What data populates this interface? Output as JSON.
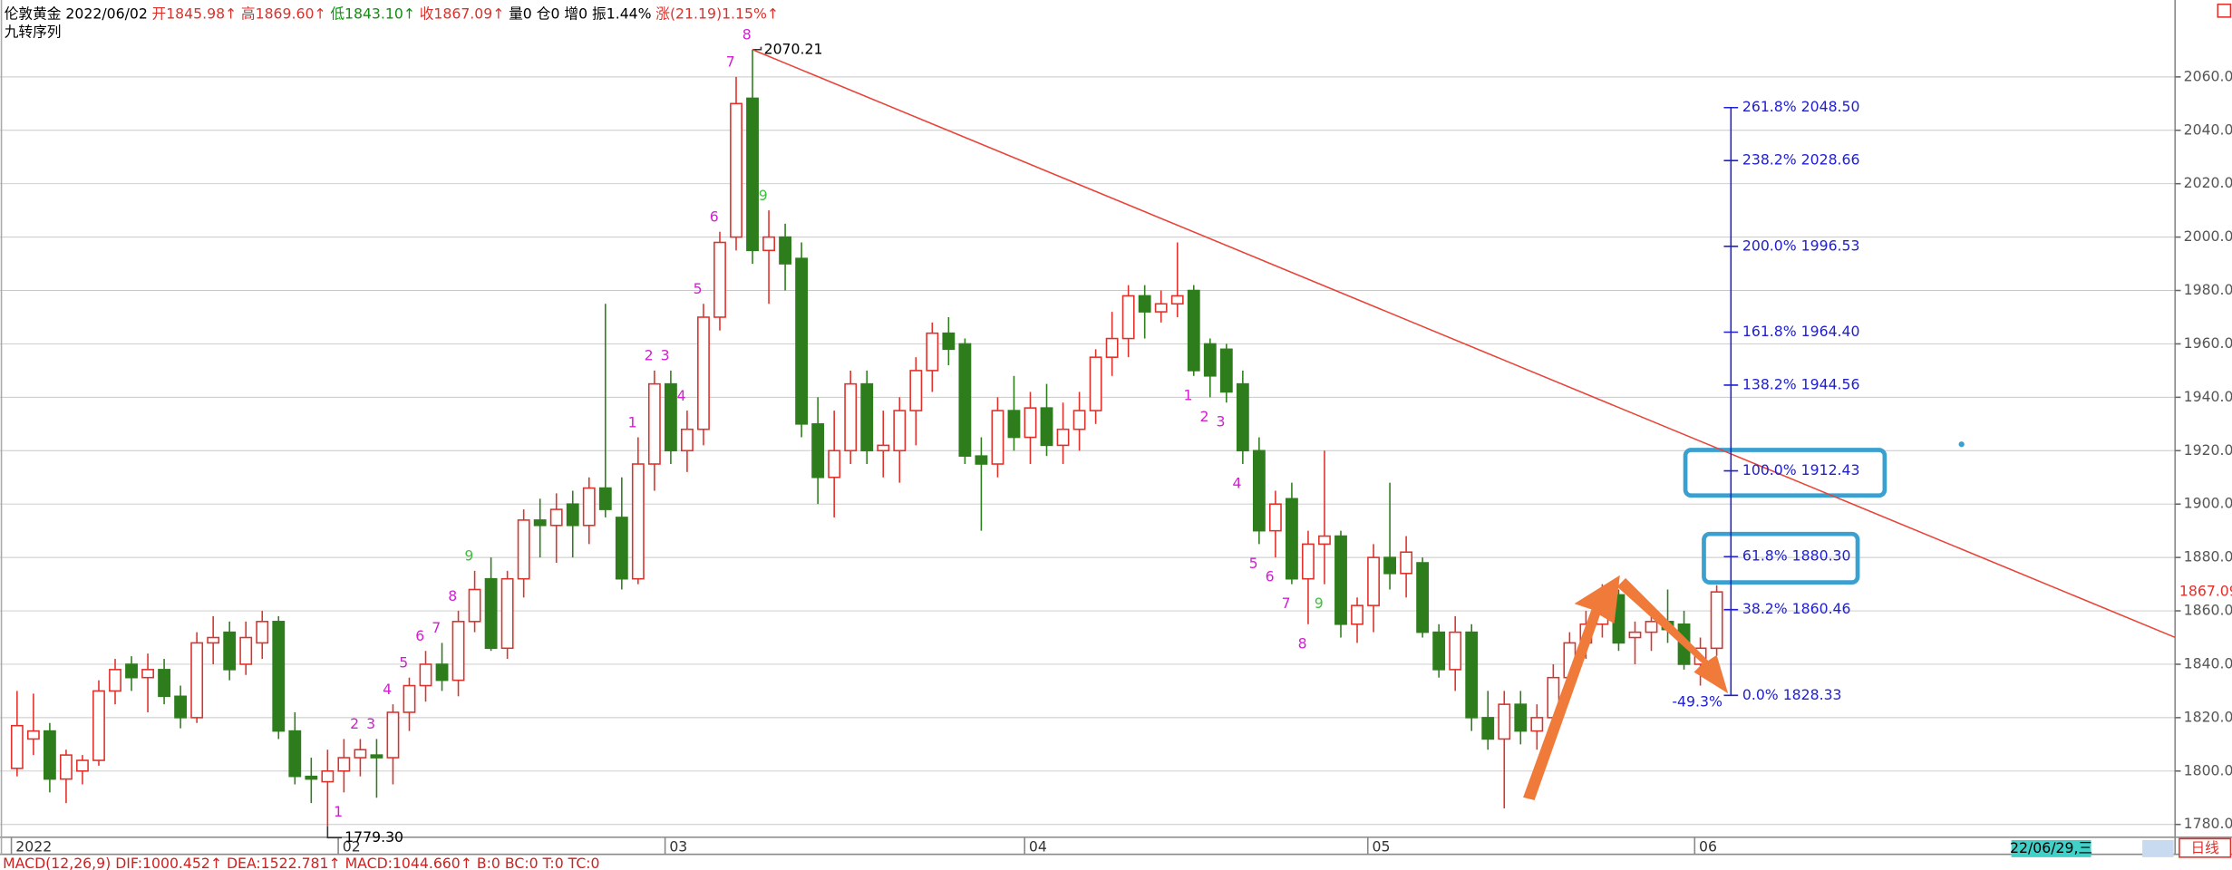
{
  "chart_data": {
    "type": "candlestick",
    "header": [
      {
        "text": "伦敦黄金 2022/06/02",
        "color": "#000000"
      },
      {
        "text": "开1845.98↑",
        "color": "#e0302a"
      },
      {
        "text": "高1869.60↑",
        "color": "#e0302a"
      },
      {
        "text": "低1843.10↑",
        "color": "#109010"
      },
      {
        "text": "收1867.09↑",
        "color": "#e0302a"
      },
      {
        "text": "量0  仓0  增0  振1.44%",
        "color": "#000000"
      },
      {
        "text": "涨(21.19)1.15%↑",
        "color": "#e0302a"
      }
    ],
    "subtitle": "九转序列",
    "up_color": "#e0302a",
    "down_color": "#2e7d1c",
    "categories": [
      "2022",
      null,
      null,
      null,
      null,
      null,
      null,
      null,
      null,
      null,
      null,
      null,
      null,
      null,
      null,
      null,
      null,
      null,
      null,
      null,
      "02",
      null,
      null,
      null,
      null,
      null,
      null,
      null,
      null,
      null,
      null,
      null,
      null,
      null,
      null,
      null,
      null,
      null,
      null,
      null,
      "03",
      null,
      null,
      null,
      null,
      null,
      null,
      null,
      null,
      null,
      null,
      null,
      null,
      null,
      null,
      null,
      null,
      null,
      null,
      null,
      null,
      null,
      "04",
      null,
      null,
      null,
      null,
      null,
      null,
      null,
      null,
      null,
      null,
      null,
      null,
      null,
      null,
      null,
      null,
      null,
      null,
      null,
      null,
      "05",
      null,
      null,
      null,
      null,
      null,
      null,
      null,
      null,
      null,
      null,
      null,
      null,
      null,
      null,
      null,
      null,
      null,
      null,
      null,
      "06"
    ],
    "ohlc": [
      [
        1801,
        1830,
        1798,
        1817
      ],
      [
        1812,
        1829,
        1806,
        1815
      ],
      [
        1815,
        1818,
        1792,
        1797
      ],
      [
        1797,
        1808,
        1788,
        1806
      ],
      [
        1800,
        1806,
        1795,
        1804
      ],
      [
        1804,
        1834,
        1802,
        1830
      ],
      [
        1830,
        1842,
        1825,
        1838
      ],
      [
        1840,
        1843,
        1830,
        1835
      ],
      [
        1835,
        1844,
        1822,
        1838
      ],
      [
        1838,
        1842,
        1825,
        1828
      ],
      [
        1828,
        1832,
        1816,
        1820
      ],
      [
        1820,
        1852,
        1818,
        1848
      ],
      [
        1848,
        1858,
        1840,
        1850
      ],
      [
        1852,
        1856,
        1834,
        1838
      ],
      [
        1840,
        1856,
        1836,
        1850
      ],
      [
        1848,
        1860,
        1842,
        1856
      ],
      [
        1856,
        1858,
        1812,
        1815
      ],
      [
        1815,
        1822,
        1795,
        1798
      ],
      [
        1798,
        1805,
        1788,
        1797
      ],
      [
        1796,
        1808,
        1779.3,
        1800
      ],
      [
        1800,
        1812,
        1792,
        1805
      ],
      [
        1805,
        1812,
        1798,
        1808
      ],
      [
        1806,
        1812,
        1790,
        1805
      ],
      [
        1805,
        1825,
        1795,
        1822
      ],
      [
        1822,
        1835,
        1815,
        1832
      ],
      [
        1832,
        1845,
        1826,
        1840
      ],
      [
        1840,
        1848,
        1830,
        1834
      ],
      [
        1834,
        1860,
        1828,
        1856
      ],
      [
        1856,
        1875,
        1852,
        1868
      ],
      [
        1872,
        1880,
        1845,
        1846
      ],
      [
        1846,
        1875,
        1842,
        1872
      ],
      [
        1872,
        1898,
        1865,
        1894
      ],
      [
        1894,
        1902,
        1880,
        1892
      ],
      [
        1892,
        1904,
        1878,
        1898
      ],
      [
        1900,
        1905,
        1880,
        1892
      ],
      [
        1892,
        1910,
        1885,
        1906
      ],
      [
        1906,
        1975,
        1895,
        1898
      ],
      [
        1895,
        1910,
        1868,
        1872
      ],
      [
        1872,
        1925,
        1870,
        1915
      ],
      [
        1915,
        1950,
        1905,
        1945
      ],
      [
        1945,
        1950,
        1915,
        1920
      ],
      [
        1920,
        1935,
        1912,
        1928
      ],
      [
        1928,
        1975,
        1922,
        1970
      ],
      [
        1970,
        2002,
        1965,
        1998
      ],
      [
        2000,
        2060,
        1995,
        2050
      ],
      [
        2052,
        2070.21,
        1990,
        1995
      ],
      [
        1995,
        2010,
        1975,
        2000
      ],
      [
        2000,
        2005,
        1980,
        1990
      ],
      [
        1992,
        1998,
        1925,
        1930
      ],
      [
        1930,
        1940,
        1900,
        1910
      ],
      [
        1910,
        1935,
        1895,
        1920
      ],
      [
        1920,
        1950,
        1915,
        1945
      ],
      [
        1945,
        1950,
        1915,
        1920
      ],
      [
        1920,
        1935,
        1910,
        1922
      ],
      [
        1920,
        1940,
        1908,
        1935
      ],
      [
        1935,
        1955,
        1922,
        1950
      ],
      [
        1950,
        1968,
        1942,
        1964
      ],
      [
        1964,
        1970,
        1952,
        1958
      ],
      [
        1960,
        1962,
        1915,
        1918
      ],
      [
        1918,
        1925,
        1890,
        1915
      ],
      [
        1915,
        1940,
        1910,
        1935
      ],
      [
        1935,
        1948,
        1920,
        1925
      ],
      [
        1925,
        1942,
        1915,
        1936
      ],
      [
        1936,
        1945,
        1918,
        1922
      ],
      [
        1922,
        1938,
        1915,
        1928
      ],
      [
        1928,
        1942,
        1920,
        1935
      ],
      [
        1935,
        1958,
        1930,
        1955
      ],
      [
        1955,
        1972,
        1948,
        1962
      ],
      [
        1962,
        1982,
        1955,
        1978
      ],
      [
        1978,
        1982,
        1962,
        1972
      ],
      [
        1972,
        1980,
        1968,
        1975
      ],
      [
        1975,
        1998,
        1970,
        1978
      ],
      [
        1980,
        1982,
        1948,
        1950
      ],
      [
        1960,
        1962,
        1940,
        1948
      ],
      [
        1958,
        1960,
        1938,
        1942
      ],
      [
        1945,
        1950,
        1915,
        1920
      ],
      [
        1920,
        1925,
        1885,
        1890
      ],
      [
        1890,
        1905,
        1880,
        1900
      ],
      [
        1902,
        1908,
        1870,
        1872
      ],
      [
        1872,
        1890,
        1855,
        1885
      ],
      [
        1885,
        1920,
        1870,
        1888
      ],
      [
        1888,
        1890,
        1850,
        1855
      ],
      [
        1855,
        1865,
        1848,
        1862
      ],
      [
        1862,
        1885,
        1852,
        1880
      ],
      [
        1880,
        1908,
        1868,
        1874
      ],
      [
        1874,
        1888,
        1865,
        1882
      ],
      [
        1878,
        1880,
        1850,
        1852
      ],
      [
        1852,
        1855,
        1835,
        1838
      ],
      [
        1838,
        1858,
        1830,
        1852
      ],
      [
        1852,
        1855,
        1815,
        1820
      ],
      [
        1820,
        1830,
        1808,
        1812
      ],
      [
        1812,
        1830,
        1786,
        1825
      ],
      [
        1825,
        1830,
        1810,
        1815
      ],
      [
        1815,
        1825,
        1808,
        1820
      ],
      [
        1820,
        1840,
        1815,
        1835
      ],
      [
        1835,
        1852,
        1830,
        1848
      ],
      [
        1848,
        1860,
        1842,
        1855
      ],
      [
        1855,
        1870,
        1850,
        1865
      ],
      [
        1866,
        1868,
        1845,
        1848
      ],
      [
        1850,
        1856,
        1840,
        1852
      ],
      [
        1852,
        1862,
        1845,
        1856
      ],
      [
        1856,
        1868,
        1848,
        1853
      ],
      [
        1855,
        1860,
        1838,
        1840
      ],
      [
        1840,
        1850,
        1832,
        1846
      ],
      [
        1845.98,
        1869.6,
        1843.1,
        1867.09
      ]
    ],
    "td_counts": [
      null,
      null,
      null,
      null,
      null,
      null,
      null,
      null,
      null,
      null,
      null,
      null,
      null,
      null,
      null,
      null,
      null,
      null,
      null,
      null,
      1,
      2,
      3,
      4,
      5,
      6,
      7,
      8,
      9,
      null,
      null,
      null,
      null,
      null,
      null,
      null,
      null,
      null,
      1,
      2,
      3,
      4,
      5,
      6,
      7,
      8,
      9,
      null,
      null,
      null,
      null,
      null,
      null,
      null,
      null,
      null,
      null,
      null,
      null,
      null,
      null,
      null,
      null,
      null,
      null,
      null,
      null,
      null,
      null,
      null,
      null,
      null,
      1,
      2,
      3,
      4,
      5,
      6,
      7,
      8,
      9,
      null,
      null,
      null,
      null,
      null,
      null,
      null,
      null,
      null,
      null,
      null,
      null,
      null,
      null,
      null,
      null,
      null,
      null,
      null,
      null,
      null,
      null,
      null,
      null
    ],
    "td_color": "#d020d0",
    "td_nine_color": "#40c040",
    "extreme_labels": {
      "high": "2070.21",
      "low": "1779.30"
    },
    "trendline": {
      "from": 2070.21,
      "to": 1921,
      "color": "#e8443a"
    },
    "fib": {
      "color": "#2020d0",
      "drop_label": "-49.3%",
      "levels": [
        {
          "value": 2048.5,
          "label": "261.8% 2048.50"
        },
        {
          "value": 2028.66,
          "label": "238.2% 2028.66"
        },
        {
          "value": 1996.53,
          "label": "200.0% 1996.53"
        },
        {
          "value": 1964.4,
          "label": "161.8% 1964.40"
        },
        {
          "value": 1944.56,
          "label": "138.2% 1944.56"
        },
        {
          "value": 1912.43,
          "label": "100.0% 1912.43"
        },
        {
          "value": 1880.3,
          "label": "61.8% 1880.30"
        },
        {
          "value": 1860.46,
          "label": "38.2% 1860.46"
        },
        {
          "value": 1828.33,
          "label": "0.0% 1828.33"
        }
      ]
    },
    "ylim": [
      1768.8,
      2088.8
    ],
    "yticks": [
      {
        "value": 1780,
        "label": "1780.00"
      },
      {
        "value": 1800,
        "label": "1800.00"
      },
      {
        "value": 1820,
        "label": "1820.00"
      },
      {
        "value": 1840,
        "label": "1840.00"
      },
      {
        "value": 1860,
        "label": "1860.00"
      },
      {
        "value": 1880,
        "label": "1880.00"
      },
      {
        "value": 1900,
        "label": "1900.00"
      },
      {
        "value": 1920,
        "label": "1920.00"
      },
      {
        "value": 1940,
        "label": "1940.00"
      },
      {
        "value": 1960,
        "label": "1960.00"
      },
      {
        "value": 1980,
        "label": "1980.00"
      },
      {
        "value": 2000,
        "label": "2000.00"
      },
      {
        "value": 2020,
        "label": "2020.00"
      },
      {
        "value": 2040,
        "label": "2040.00"
      },
      {
        "value": 2060,
        "label": "2060.00"
      }
    ],
    "grid": true,
    "cursor_date": "22/06/29,三",
    "period": "日线",
    "macd_text": "MACD(12,26,9)  DIF:1000.452↑  DEA:1522.781↑  MACD:1044.660↑  B:0  BC:0  T:0  TC:0"
  }
}
